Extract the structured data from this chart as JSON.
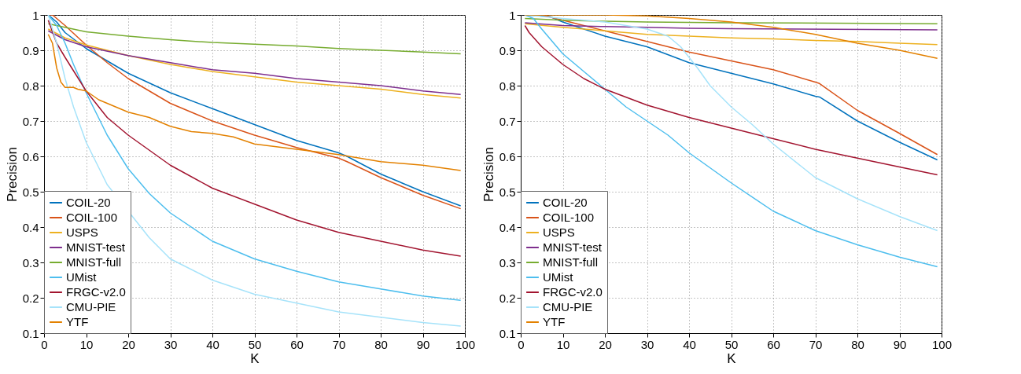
{
  "chart_data": [
    {
      "type": "line",
      "xlabel": "K",
      "ylabel": "Precision",
      "xlim": [
        0,
        100
      ],
      "ylim": [
        0.1,
        1
      ],
      "xticks": [
        0,
        10,
        20,
        30,
        40,
        50,
        60,
        70,
        80,
        90,
        100
      ],
      "yticks": [
        0.1,
        0.2,
        0.3,
        0.4,
        0.5,
        0.6,
        0.7,
        0.8,
        0.9,
        1
      ],
      "grid": true,
      "legend": "bottom left",
      "series": [
        {
          "name": "COIL-20",
          "color": "#0072bd",
          "x": [
            1,
            3,
            5,
            10,
            15,
            20,
            30,
            40,
            50,
            60,
            70,
            72,
            80,
            90,
            99
          ],
          "values": [
            1.0,
            0.98,
            0.95,
            0.905,
            0.87,
            0.835,
            0.78,
            0.735,
            0.69,
            0.645,
            0.61,
            0.6,
            0.55,
            0.5,
            0.46
          ]
        },
        {
          "name": "COIL-100",
          "color": "#d95319",
          "x": [
            1,
            2,
            5,
            10,
            15,
            20,
            30,
            40,
            50,
            60,
            70,
            72,
            80,
            90,
            99
          ],
          "values": [
            1.0,
            1.0,
            0.97,
            0.915,
            0.865,
            0.82,
            0.75,
            0.7,
            0.66,
            0.625,
            0.595,
            0.585,
            0.54,
            0.49,
            0.452
          ]
        },
        {
          "name": "USPS",
          "color": "#edb120",
          "x": [
            1,
            5,
            10,
            20,
            30,
            40,
            50,
            60,
            70,
            80,
            90,
            99
          ],
          "values": [
            0.96,
            0.935,
            0.915,
            0.885,
            0.86,
            0.84,
            0.825,
            0.81,
            0.8,
            0.79,
            0.775,
            0.765
          ]
        },
        {
          "name": "MNIST-test",
          "color": "#7e2f8e",
          "x": [
            1,
            5,
            10,
            20,
            30,
            40,
            50,
            60,
            70,
            80,
            90,
            99
          ],
          "values": [
            0.955,
            0.93,
            0.91,
            0.885,
            0.865,
            0.845,
            0.835,
            0.82,
            0.81,
            0.8,
            0.785,
            0.775
          ]
        },
        {
          "name": "MNIST-full",
          "color": "#77ac30",
          "x": [
            1,
            10,
            20,
            30,
            40,
            50,
            60,
            70,
            80,
            90,
            99
          ],
          "values": [
            0.975,
            0.952,
            0.94,
            0.93,
            0.922,
            0.917,
            0.912,
            0.905,
            0.9,
            0.895,
            0.89
          ]
        },
        {
          "name": "UMist",
          "color": "#4dbeee",
          "x": [
            1,
            3,
            5,
            7,
            10,
            15,
            20,
            25,
            30,
            40,
            50,
            60,
            70,
            80,
            90,
            99
          ],
          "values": [
            1.0,
            0.97,
            0.92,
            0.86,
            0.78,
            0.66,
            0.565,
            0.495,
            0.44,
            0.36,
            0.31,
            0.275,
            0.245,
            0.225,
            0.205,
            0.193
          ]
        },
        {
          "name": "FRGC-v2.0",
          "color": "#a2142f",
          "x": [
            1,
            3,
            5,
            10,
            15,
            20,
            30,
            40,
            50,
            60,
            70,
            80,
            90,
            99
          ],
          "values": [
            0.985,
            0.92,
            0.88,
            0.785,
            0.71,
            0.66,
            0.575,
            0.51,
            0.465,
            0.42,
            0.385,
            0.36,
            0.335,
            0.318
          ]
        },
        {
          "name": "CMU-PIE",
          "color": "#a6e3fa",
          "x": [
            1,
            3,
            5,
            7,
            10,
            15,
            25,
            30,
            40,
            50,
            60,
            70,
            80,
            90,
            99
          ],
          "values": [
            1.0,
            0.92,
            0.82,
            0.74,
            0.64,
            0.52,
            0.37,
            0.31,
            0.25,
            0.21,
            0.185,
            0.16,
            0.145,
            0.13,
            0.12
          ]
        },
        {
          "name": "YTF",
          "color": "#e38100",
          "x": [
            1,
            2,
            3,
            4,
            5,
            7,
            8,
            10,
            13,
            15,
            20,
            25,
            30,
            35,
            40,
            45,
            50,
            60,
            70,
            80,
            90,
            99
          ],
          "values": [
            0.945,
            0.92,
            0.85,
            0.81,
            0.795,
            0.795,
            0.79,
            0.785,
            0.76,
            0.75,
            0.725,
            0.71,
            0.685,
            0.67,
            0.665,
            0.655,
            0.635,
            0.62,
            0.605,
            0.585,
            0.575,
            0.56
          ]
        }
      ]
    },
    {
      "type": "line",
      "xlabel": "K",
      "ylabel": "Precision",
      "xlim": [
        0,
        100
      ],
      "ylim": [
        0.1,
        1
      ],
      "xticks": [
        0,
        10,
        20,
        30,
        40,
        50,
        60,
        70,
        80,
        90,
        100
      ],
      "yticks": [
        0.1,
        0.2,
        0.3,
        0.4,
        0.5,
        0.6,
        0.7,
        0.8,
        0.9,
        1
      ],
      "grid": true,
      "legend": "bottom left",
      "series": [
        {
          "name": "COIL-20",
          "color": "#0072bd",
          "x": [
            1,
            7,
            10,
            20,
            30,
            40,
            50,
            60,
            70,
            71,
            80,
            90,
            99
          ],
          "values": [
            1.0,
            0.995,
            0.98,
            0.94,
            0.91,
            0.865,
            0.835,
            0.805,
            0.77,
            0.768,
            0.7,
            0.64,
            0.59
          ]
        },
        {
          "name": "COIL-100",
          "color": "#d95319",
          "x": [
            1,
            5,
            10,
            20,
            30,
            40,
            50,
            60,
            70,
            71,
            80,
            90,
            99
          ],
          "values": [
            1.0,
            1.0,
            0.985,
            0.955,
            0.925,
            0.895,
            0.87,
            0.845,
            0.81,
            0.806,
            0.73,
            0.665,
            0.605
          ]
        },
        {
          "name": "USPS",
          "color": "#edb120",
          "x": [
            1,
            10,
            20,
            30,
            40,
            50,
            60,
            70,
            80,
            90,
            99
          ],
          "values": [
            0.975,
            0.965,
            0.955,
            0.945,
            0.94,
            0.935,
            0.932,
            0.928,
            0.925,
            0.92,
            0.916
          ]
        },
        {
          "name": "MNIST-test",
          "color": "#7e2f8e",
          "x": [
            1,
            10,
            20,
            30,
            40,
            50,
            99
          ],
          "values": [
            0.978,
            0.97,
            0.967,
            0.965,
            0.962,
            0.961,
            0.958
          ]
        },
        {
          "name": "MNIST-full",
          "color": "#77ac30",
          "x": [
            1,
            10,
            20,
            30,
            50,
            99
          ],
          "values": [
            0.99,
            0.985,
            0.982,
            0.98,
            0.978,
            0.975
          ]
        },
        {
          "name": "UMist",
          "color": "#4dbeee",
          "x": [
            1,
            3,
            5,
            10,
            15,
            20,
            25,
            30,
            35,
            40,
            50,
            60,
            70,
            80,
            90,
            99
          ],
          "values": [
            1.0,
            0.99,
            0.96,
            0.89,
            0.84,
            0.79,
            0.74,
            0.7,
            0.66,
            0.61,
            0.525,
            0.445,
            0.39,
            0.35,
            0.315,
            0.288
          ]
        },
        {
          "name": "FRGC-v2.0",
          "color": "#a2142f",
          "x": [
            1,
            2,
            5,
            10,
            15,
            20,
            30,
            40,
            50,
            60,
            70,
            80,
            90,
            99
          ],
          "values": [
            0.97,
            0.95,
            0.91,
            0.86,
            0.82,
            0.79,
            0.745,
            0.71,
            0.68,
            0.65,
            0.62,
            0.595,
            0.57,
            0.548
          ]
        },
        {
          "name": "CMU-PIE",
          "color": "#a6e3fa",
          "x": [
            1,
            10,
            20,
            30,
            35,
            38,
            42,
            45,
            50,
            55,
            60,
            70,
            80,
            90,
            99
          ],
          "values": [
            1.0,
            0.99,
            0.98,
            0.96,
            0.94,
            0.91,
            0.85,
            0.8,
            0.74,
            0.69,
            0.635,
            0.54,
            0.48,
            0.43,
            0.39
          ]
        },
        {
          "name": "YTF",
          "color": "#e38100",
          "x": [
            1,
            20,
            30,
            40,
            50,
            60,
            70,
            80,
            90,
            99
          ],
          "values": [
            1.0,
            1.0,
            0.997,
            0.99,
            0.98,
            0.965,
            0.945,
            0.92,
            0.9,
            0.877
          ]
        }
      ]
    }
  ]
}
